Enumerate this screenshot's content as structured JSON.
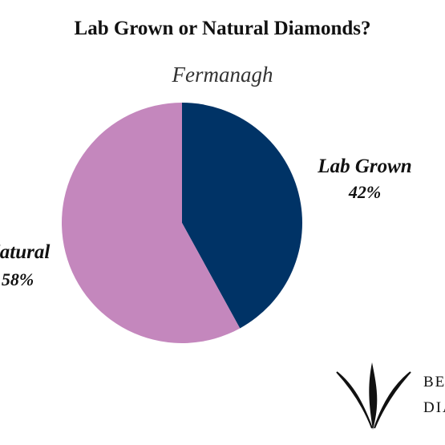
{
  "chart_data": {
    "type": "pie",
    "title": "Lab Grown or Natural Diamonds?",
    "subtitle": "Fermanagh",
    "slices": [
      {
        "name": "Lab Grown",
        "value": 42,
        "label": "42%",
        "color": "#003366"
      },
      {
        "name": "Natural",
        "value": 58,
        "label": "58%",
        "color": "#c487bd"
      }
    ],
    "start_angle_deg": 0,
    "direction": "clockwise",
    "legend": "none"
  },
  "logo": {
    "text_line1": "BE",
    "text_line2": "DIA",
    "icon": "diamond-logo-icon"
  }
}
